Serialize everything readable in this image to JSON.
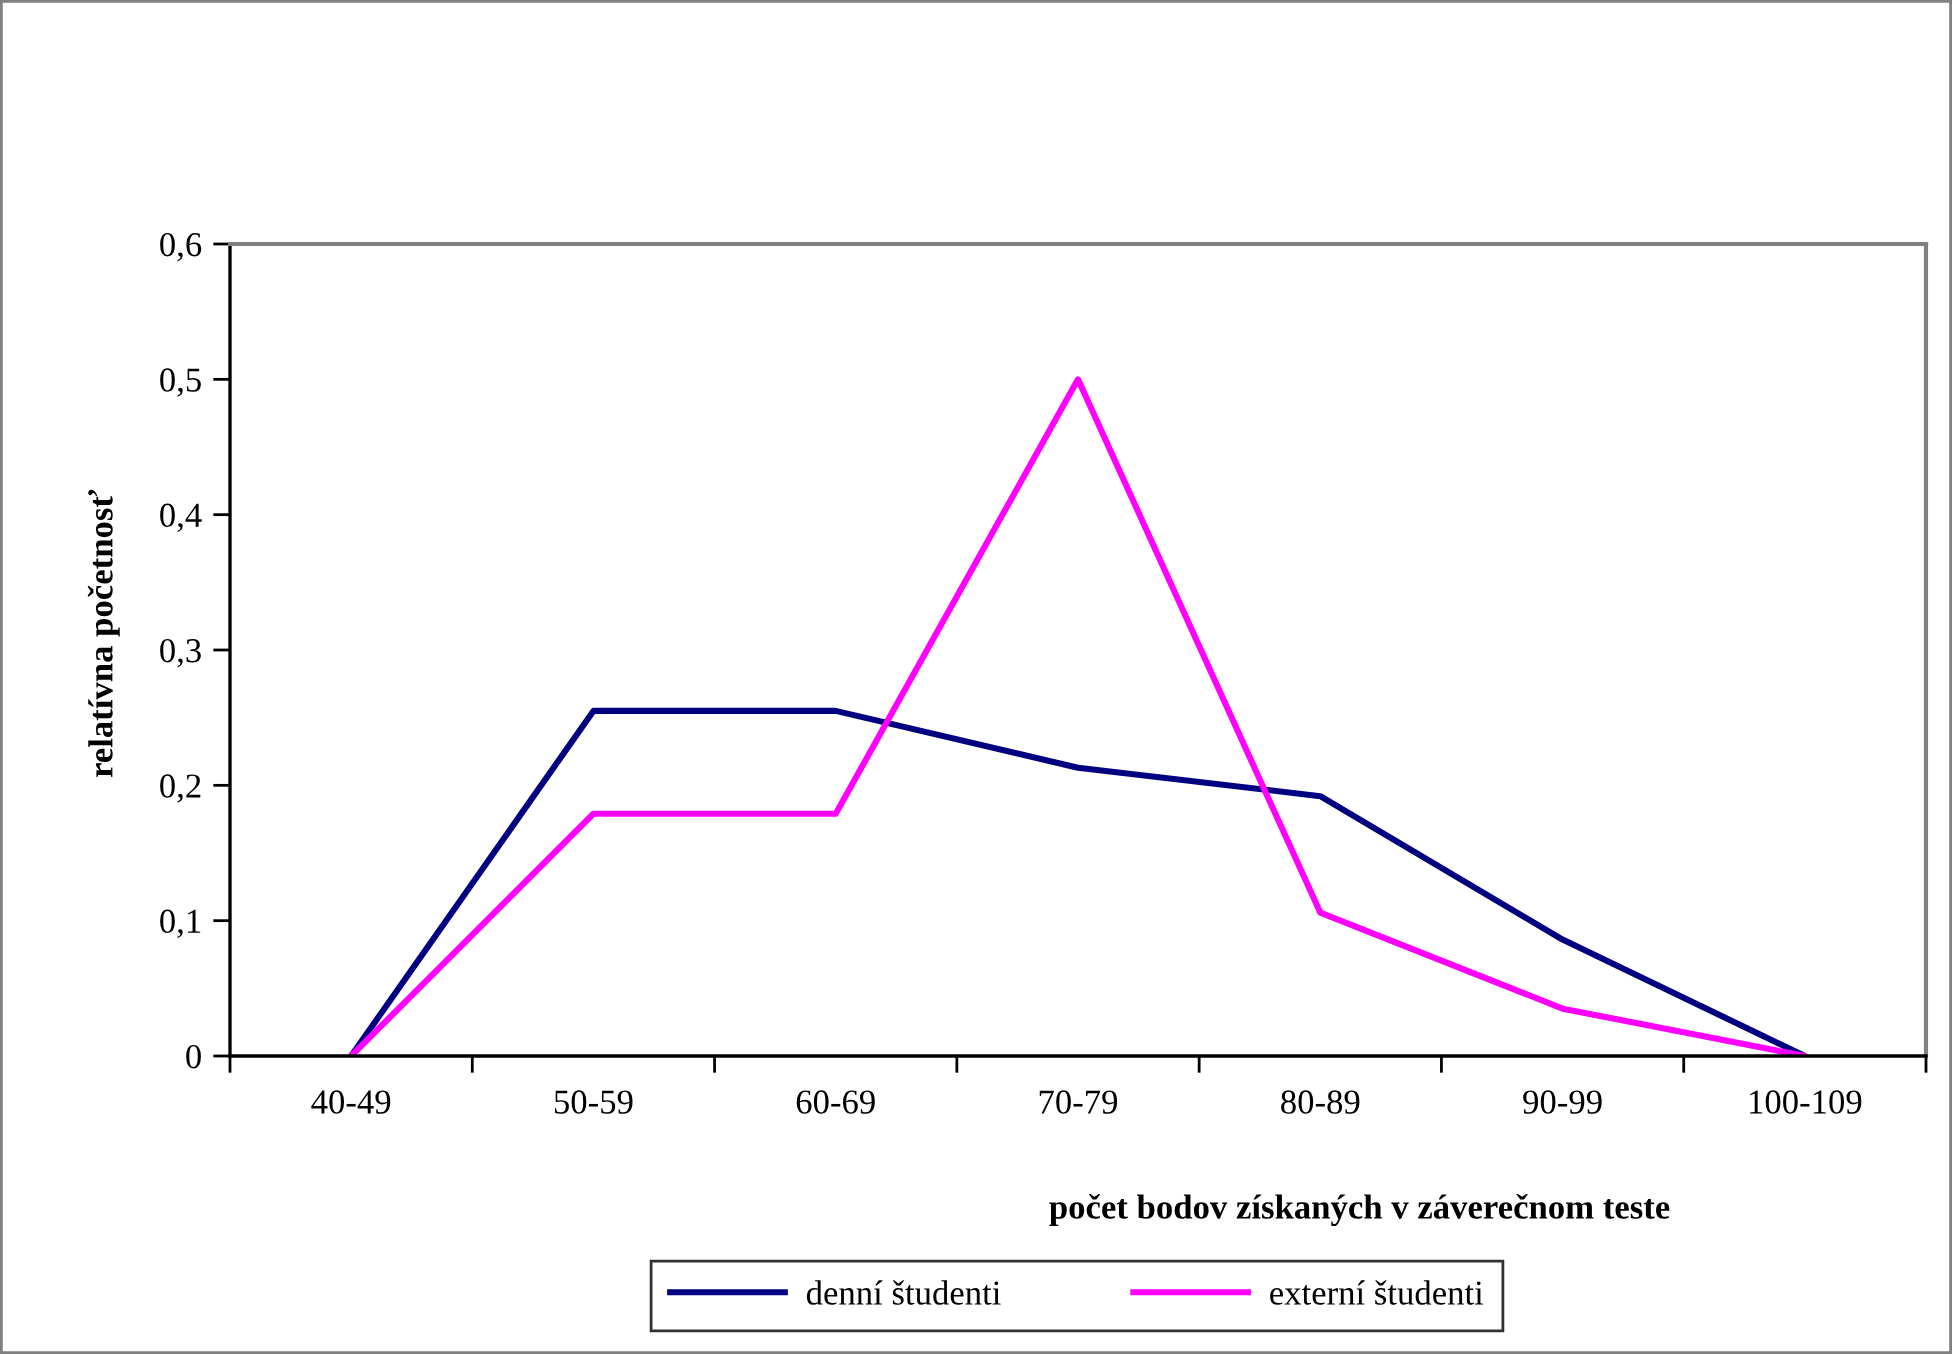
{
  "chart_data": {
    "type": "line",
    "xlabel": "počet bodov získaných v záverečnom teste",
    "ylabel": "relatívna početnosť",
    "categories": [
      "40-49",
      "50-59",
      "60-69",
      "70-79",
      "80-89",
      "90-99",
      "100-109"
    ],
    "series": [
      {
        "name": "denní študenti",
        "color": "#000080",
        "values": [
          0,
          0.255,
          0.255,
          0.213,
          0.192,
          0.086,
          0
        ]
      },
      {
        "name": "externí študenti",
        "color": "#ff00ff",
        "values": [
          0,
          0.179,
          0.179,
          0.5,
          0.106,
          0.035,
          0
        ]
      }
    ],
    "ylim": [
      0,
      0.6
    ],
    "yticks": [
      0,
      {
        "value": 0.1,
        "label": "0,1"
      },
      {
        "value": 0.2,
        "label": "0,2"
      },
      {
        "value": 0.3,
        "label": "0,3"
      },
      {
        "value": 0.4,
        "label": "0,4"
      },
      {
        "value": 0.5,
        "label": "0,5"
      },
      {
        "value": 0.6,
        "label": "0,6"
      }
    ],
    "legend": "bottom"
  }
}
